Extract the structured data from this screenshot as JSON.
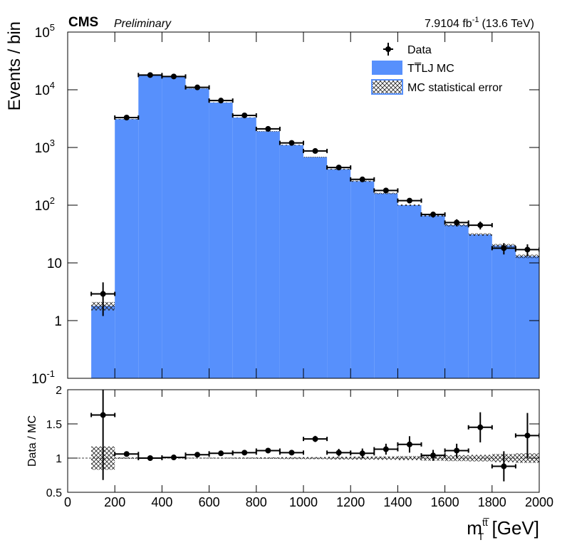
{
  "chart_data": {
    "type": "histogram",
    "cms_label": "CMS",
    "status": "Preliminary",
    "lumi": "7.9104 fb",
    "lumi_exponent": "-1",
    "energy": "(13.6 TeV)",
    "ylabel": "Events / bin",
    "xlabel": {
      "main": "m",
      "sub": "T",
      "sup": "tt̅",
      "unit": " [GeV]"
    },
    "log_y": true,
    "bins": [
      100,
      200,
      300,
      400,
      500,
      600,
      700,
      800,
      900,
      1000,
      1100,
      1200,
      1300,
      1400,
      1500,
      1600,
      1700,
      1800,
      1900,
      2000
    ],
    "xlim": [
      0,
      2000
    ],
    "xticks": [
      0,
      200,
      400,
      600,
      800,
      1000,
      1200,
      1400,
      1600,
      1800,
      2000
    ],
    "ylim": [
      0.1,
      100000
    ],
    "yticks": [
      {
        "value": 0.1,
        "label": "10",
        "exponent": "-1"
      },
      1,
      10,
      {
        "value": 100,
        "label": "10",
        "exponent": "2"
      },
      {
        "value": 1000,
        "label": "10",
        "exponent": "3"
      },
      {
        "value": 10000,
        "label": "10",
        "exponent": "4"
      },
      {
        "value": 100000,
        "label": "10",
        "exponent": "5"
      }
    ],
    "legend": "top-right",
    "series": [
      {
        "name": "Data",
        "color": "#000000",
        "values": [
          2.9,
          3300,
          18000,
          17000,
          11000,
          6500,
          3600,
          2100,
          1200,
          870,
          450,
          280,
          180,
          120,
          69,
          50,
          45,
          18,
          17
        ],
        "errors": [
          1.7,
          57,
          134,
          130,
          105,
          81,
          60,
          46,
          35,
          29,
          21,
          17,
          13,
          11,
          8,
          7,
          7,
          4,
          4
        ]
      },
      {
        "name": "TT̅LJ MC",
        "color": "#5790fc",
        "values": [
          1.8,
          3100,
          18000,
          16800,
          10500,
          6000,
          3300,
          1900,
          1100,
          680,
          420,
          260,
          160,
          100,
          66,
          45,
          31,
          20,
          13
        ],
        "errors": [
          0.3,
          30,
          90,
          85,
          55,
          35,
          25,
          20,
          15,
          10,
          8,
          6,
          4,
          3,
          2.5,
          2,
          1.5,
          1.2,
          0.9
        ]
      }
    ],
    "band_name": "MC statistical error",
    "ratio": {
      "ylabel": "Data / MC",
      "ylim": [
        0.5,
        2
      ],
      "yticks": [
        0.5,
        1,
        1.5,
        2
      ],
      "reference": 1,
      "values": [
        1.63,
        1.06,
        1.0,
        1.01,
        1.05,
        1.07,
        1.08,
        1.11,
        1.08,
        1.28,
        1.08,
        1.07,
        1.13,
        1.2,
        1.04,
        1.11,
        1.45,
        0.88,
        1.33
      ],
      "errors": [
        0.95,
        0.02,
        0.01,
        0.01,
        0.01,
        0.015,
        0.02,
        0.025,
        0.035,
        0.045,
        0.055,
        0.07,
        0.08,
        0.12,
        0.08,
        0.1,
        0.22,
        0.22,
        0.33
      ],
      "mc_errors": [
        0.17,
        0.01,
        0.005,
        0.005,
        0.005,
        0.006,
        0.008,
        0.01,
        0.014,
        0.015,
        0.02,
        0.023,
        0.025,
        0.03,
        0.038,
        0.044,
        0.048,
        0.06,
        0.07
      ]
    }
  }
}
